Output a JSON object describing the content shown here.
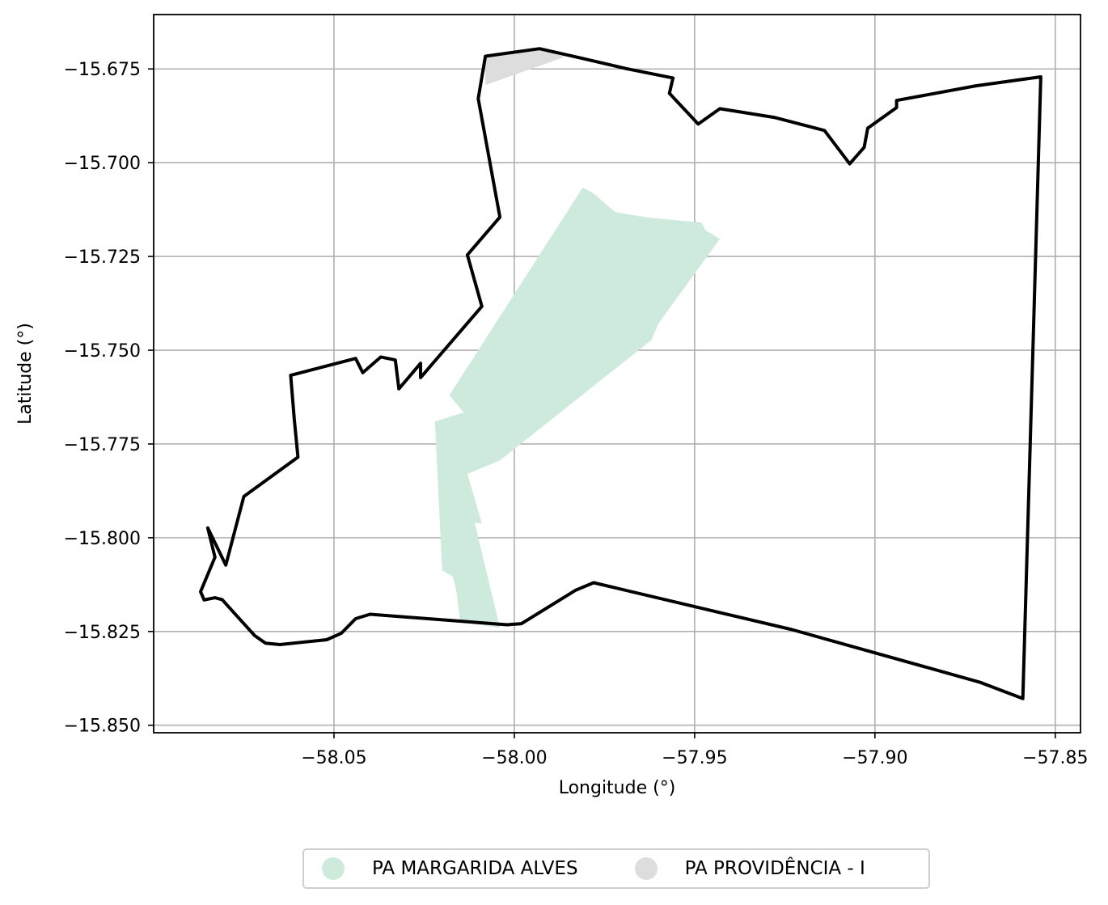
{
  "chart_data": {
    "type": "map",
    "xlabel": "Longitude (°)",
    "ylabel": "Latitude (°)",
    "xlim": [
      -58.1,
      -57.843
    ],
    "ylim": [
      -15.852,
      -15.6605
    ],
    "xticks": [
      -58.05,
      -58.0,
      -57.95,
      -57.9,
      -57.85
    ],
    "yticks": [
      -15.675,
      -15.7,
      -15.725,
      -15.75,
      -15.775,
      -15.8,
      -15.825,
      -15.85
    ],
    "xtick_labels": [
      "−58.05",
      "−58.00",
      "−57.95",
      "−57.90",
      "−57.85"
    ],
    "ytick_labels": [
      "−15.675",
      "−15.700",
      "−15.725",
      "−15.750",
      "−15.775",
      "−15.800",
      "−15.825",
      "−15.850"
    ],
    "grid": true,
    "legend_position": "bottom-center",
    "boundary": {
      "color": "#000000",
      "coords": [
        [
          -58.008,
          -15.6716
        ],
        [
          -57.993,
          -15.6696
        ],
        [
          -57.981,
          -15.6722
        ],
        [
          -57.969,
          -15.6749
        ],
        [
          -57.956,
          -15.6774
        ],
        [
          -57.957,
          -15.6815
        ],
        [
          -57.949,
          -15.6897
        ],
        [
          -57.943,
          -15.6856
        ],
        [
          -57.928,
          -15.6879
        ],
        [
          -57.914,
          -15.6914
        ],
        [
          -57.907,
          -15.7003
        ],
        [
          -57.903,
          -15.6959
        ],
        [
          -57.902,
          -15.6908
        ],
        [
          -57.894,
          -15.6853
        ],
        [
          -57.894,
          -15.6834
        ],
        [
          -57.872,
          -15.6795
        ],
        [
          -57.854,
          -15.6771
        ],
        [
          -57.859,
          -15.8429
        ],
        [
          -57.871,
          -15.8385
        ],
        [
          -57.923,
          -15.8245
        ],
        [
          -57.978,
          -15.812
        ],
        [
          -57.983,
          -15.814
        ],
        [
          -57.998,
          -15.8229
        ],
        [
          -58.002,
          -15.8232
        ],
        [
          -58.04,
          -15.8204
        ],
        [
          -58.044,
          -15.8216
        ],
        [
          -58.048,
          -15.8255
        ],
        [
          -58.052,
          -15.8272
        ],
        [
          -58.065,
          -15.8285
        ],
        [
          -58.069,
          -15.8281
        ],
        [
          -58.072,
          -15.8261
        ],
        [
          -58.077,
          -15.8208
        ],
        [
          -58.081,
          -15.8165
        ],
        [
          -58.083,
          -15.816
        ],
        [
          -58.086,
          -15.8166
        ],
        [
          -58.087,
          -15.8144
        ],
        [
          -58.083,
          -15.8052
        ],
        [
          -58.085,
          -15.7974
        ],
        [
          -58.08,
          -15.8073
        ],
        [
          -58.075,
          -15.789
        ],
        [
          -58.06,
          -15.7785
        ],
        [
          -58.061,
          -15.7685
        ],
        [
          -58.062,
          -15.7567
        ],
        [
          -58.044,
          -15.7522
        ],
        [
          -58.042,
          -15.756
        ],
        [
          -58.037,
          -15.7518
        ],
        [
          -58.033,
          -15.7526
        ],
        [
          -58.032,
          -15.7603
        ],
        [
          -58.026,
          -15.7535
        ],
        [
          -58.026,
          -15.7573
        ],
        [
          -58.009,
          -15.7383
        ],
        [
          -58.013,
          -15.7246
        ],
        [
          -58.004,
          -15.7145
        ],
        [
          -58.01,
          -15.6829
        ],
        [
          -58.008,
          -15.6716
        ]
      ]
    },
    "series": [
      {
        "name": "PA MARGARIDA ALVES",
        "color": "#cdeadc",
        "coords": [
          [
            -57.981,
            -15.7066
          ],
          [
            -57.978,
            -15.7082
          ],
          [
            -57.972,
            -15.7132
          ],
          [
            -57.963,
            -15.7146
          ],
          [
            -57.948,
            -15.716
          ],
          [
            -57.947,
            -15.718
          ],
          [
            -57.943,
            -15.7203
          ],
          [
            -57.96,
            -15.7428
          ],
          [
            -57.962,
            -15.7473
          ],
          [
            -58.004,
            -15.7794
          ],
          [
            -58.013,
            -15.783
          ],
          [
            -58.009,
            -15.7962
          ],
          [
            -58.011,
            -15.796
          ],
          [
            -58.004,
            -15.824
          ],
          [
            -58.015,
            -15.8225
          ],
          [
            -58.016,
            -15.8145
          ],
          [
            -58.017,
            -15.8104
          ],
          [
            -58.02,
            -15.8087
          ],
          [
            -58.022,
            -15.769
          ],
          [
            -58.014,
            -15.7666
          ],
          [
            -58.018,
            -15.762
          ],
          [
            -57.981,
            -15.7066
          ]
        ]
      },
      {
        "name": "PA PROVIDÊNCIA - I",
        "color": "#dddddd",
        "coords": [
          [
            -58.008,
            -15.6716
          ],
          [
            -57.993,
            -15.6696
          ],
          [
            -57.986,
            -15.6718
          ],
          [
            -58.008,
            -15.6793
          ],
          [
            -58.008,
            -15.6716
          ]
        ]
      }
    ]
  }
}
